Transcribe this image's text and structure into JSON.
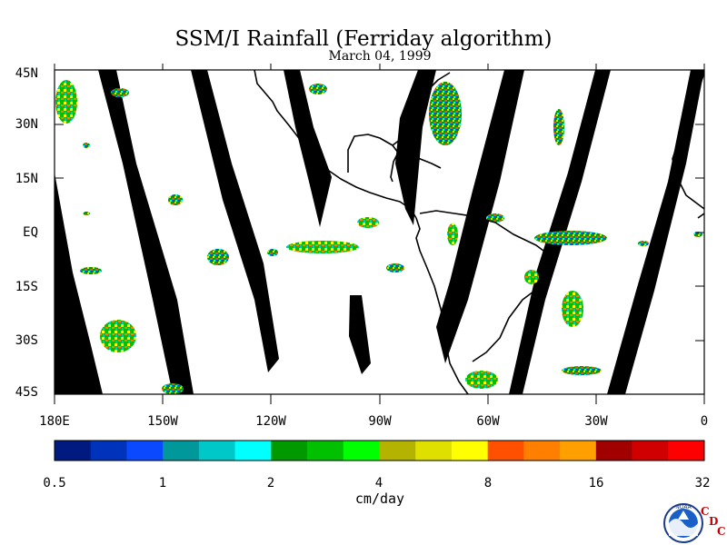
{
  "title": "SSM/I Rainfall (Ferriday algorithm)",
  "date": "March 04, 1999",
  "map": {
    "lat_labels": [
      "45N",
      "30N",
      "15N",
      "EQ",
      "15S",
      "30S",
      "45S"
    ],
    "lat_values": [
      45,
      30,
      15,
      0,
      -15,
      -30,
      -45
    ],
    "lon_labels": [
      "180E",
      "150W",
      "120W",
      "90W",
      "60W",
      "30W",
      "0"
    ],
    "lon_values": [
      -180,
      -150,
      -120,
      -90,
      -60,
      -30,
      0
    ],
    "extent": {
      "lon": [
        -180,
        0
      ],
      "lat": [
        -45,
        45
      ]
    },
    "missing_data_color": "#000000",
    "background_color": "#ffffff"
  },
  "colorbar": {
    "tick_labels": [
      "0.5",
      "1",
      "2",
      "4",
      "8",
      "16",
      "32"
    ],
    "unit": "cm/day",
    "colors": [
      "#001a80",
      "#0033bb",
      "#0a4aff",
      "#00989a",
      "#00c8c8",
      "#00ffff",
      "#009900",
      "#00c000",
      "#00ff00",
      "#b4b400",
      "#e0e000",
      "#ffff00",
      "#ff5000",
      "#ff8000",
      "#ffa000",
      "#a00000",
      "#d00000",
      "#ff0000"
    ]
  },
  "logo": {
    "ring_text": "NOAA",
    "letters": [
      "C",
      "D",
      "C"
    ]
  }
}
